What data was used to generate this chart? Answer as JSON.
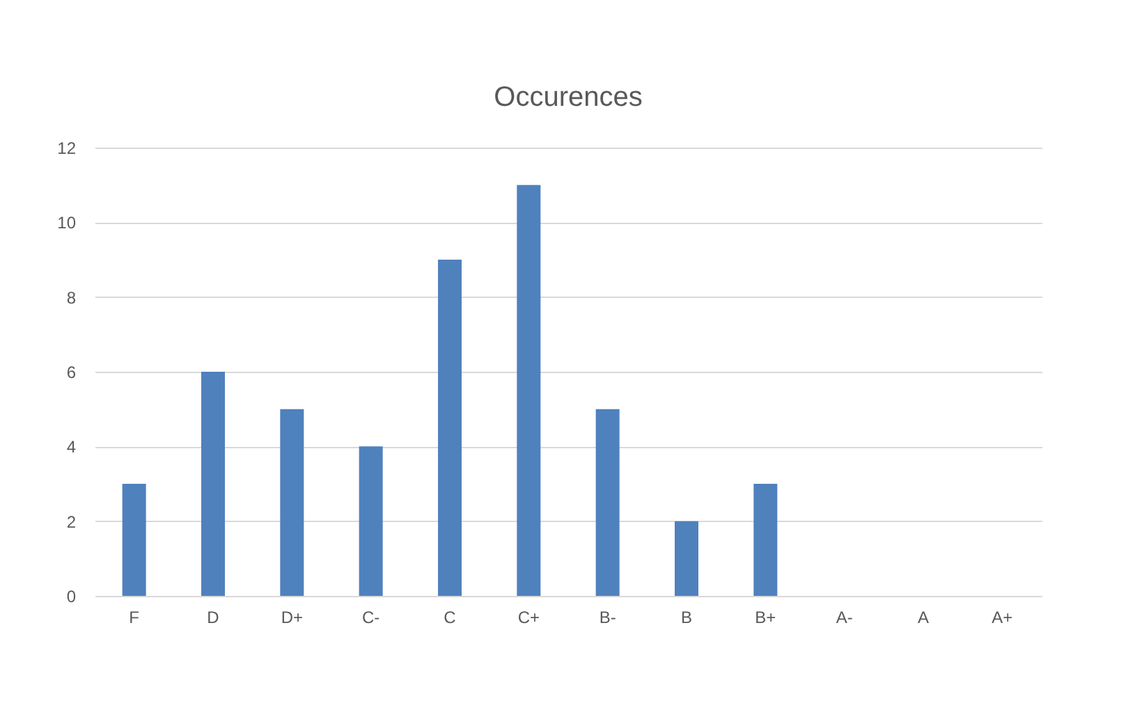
{
  "chart_data": {
    "type": "bar",
    "title": "Occurences",
    "categories": [
      "F",
      "D",
      "D+",
      "C-",
      "C",
      "C+",
      "B-",
      "B",
      "B+",
      "A-",
      "A",
      "A+"
    ],
    "values": [
      3,
      6,
      5,
      4,
      9,
      11,
      5,
      2,
      3,
      0,
      0,
      0
    ],
    "color": "#4f81bd",
    "ylim": [
      0,
      12
    ],
    "yticks": [
      0,
      2,
      4,
      6,
      8,
      10,
      12
    ],
    "grid": "y"
  }
}
